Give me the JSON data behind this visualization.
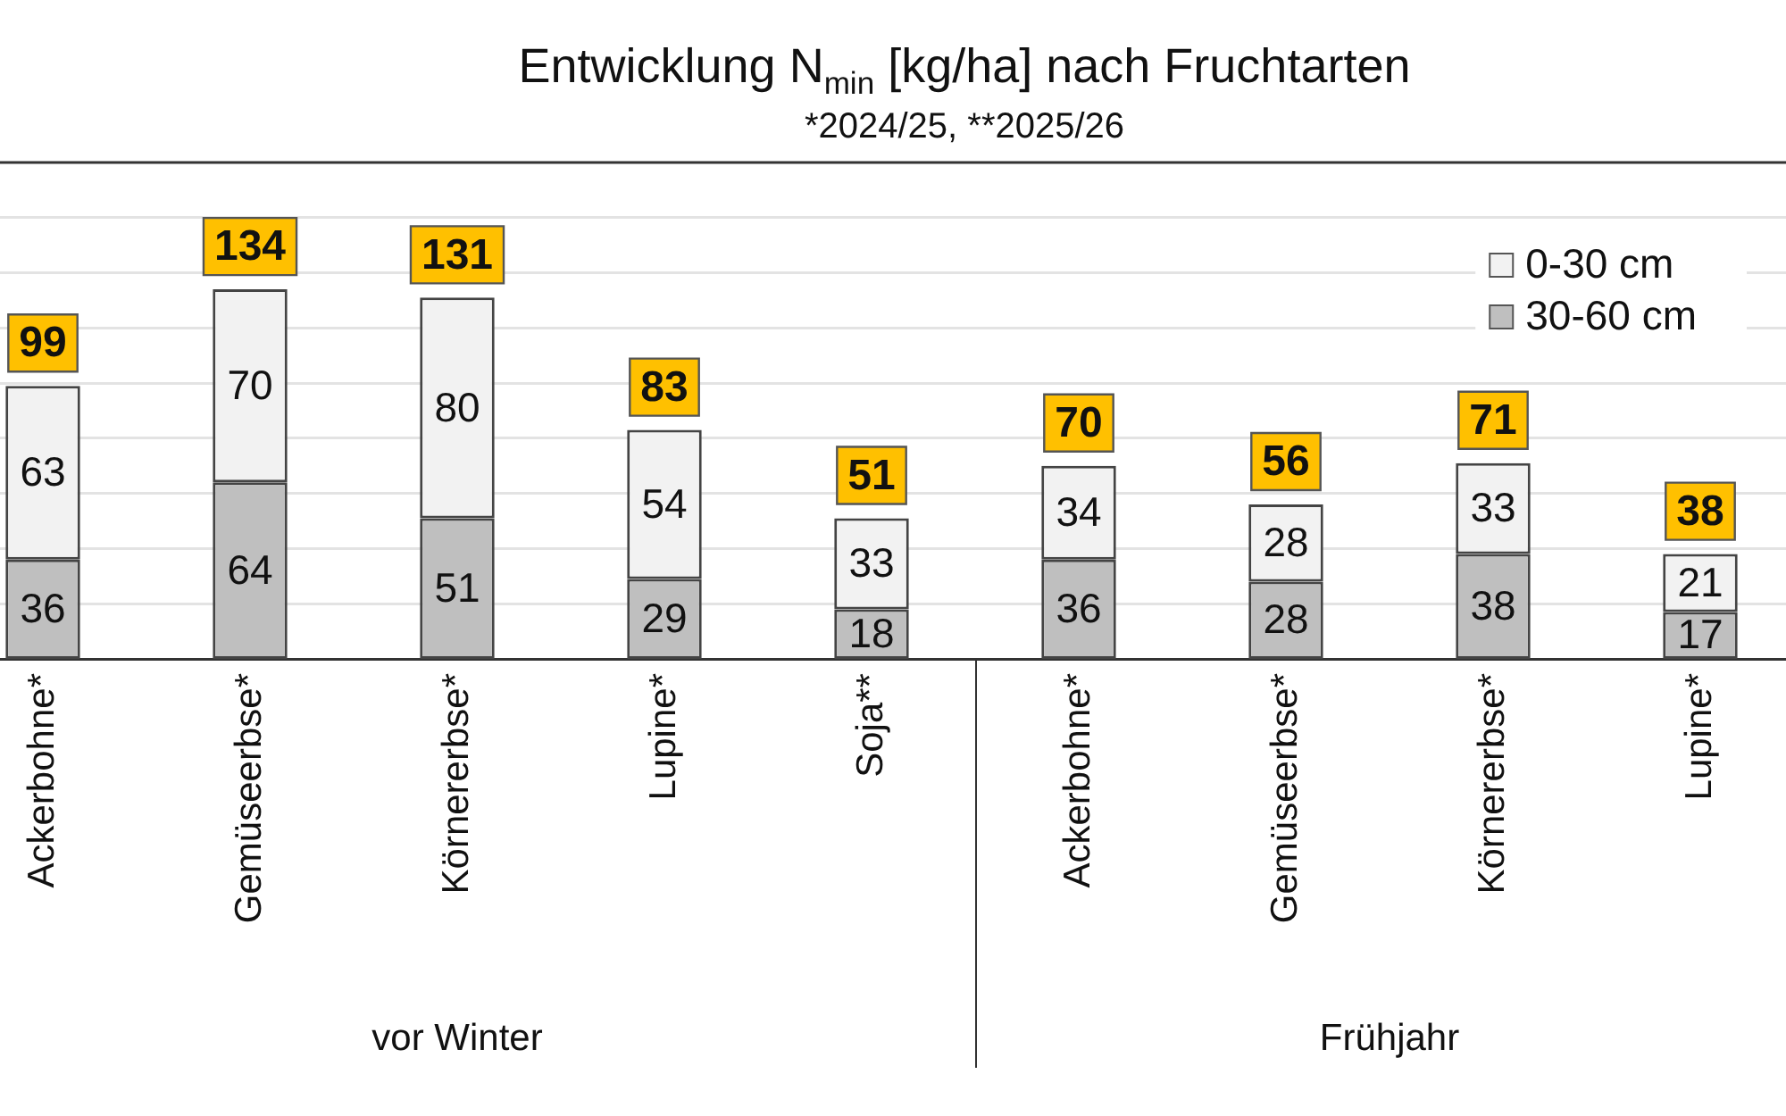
{
  "chart_data": {
    "type": "bar",
    "title": "Entwicklung N$_{min}$ [kg/ha] nach Fruchtarten",
    "subtitle": "*2024/25, **2025/26",
    "categories": [
      "Ackerbohne*",
      "Gemüseerbse*",
      "Körnererbse*",
      "Lupine*",
      "Soja**",
      "Ackerbohne*",
      "Gemüseerbse*",
      "Körnererbse*",
      "Lupine*"
    ],
    "stacked": true,
    "series": [
      {
        "name": "30-60 cm",
        "color": "#bfbfbf",
        "values": [
          36,
          64,
          51,
          29,
          18,
          36,
          28,
          38,
          17
        ]
      },
      {
        "name": "0-30 cm",
        "color": "#f2f2f2",
        "values": [
          63,
          70,
          80,
          54,
          33,
          34,
          28,
          33,
          21
        ]
      }
    ],
    "data_labels": true,
    "totals": [
      "99",
      "134",
      "131",
      "83",
      "51",
      "70",
      "56",
      "71",
      "38"
    ],
    "ylim": [
      0,
      180
    ],
    "yticks": [
      {
        "value": 20,
        "label": null
      },
      {
        "value": 40,
        "label": null
      },
      {
        "value": 60,
        "label": null
      },
      {
        "value": 80,
        "label": null
      },
      {
        "value": 100,
        "label": null
      },
      {
        "value": 120,
        "label": null
      },
      {
        "value": 140,
        "label": null
      },
      {
        "value": 160,
        "label": null
      }
    ],
    "grid": "y",
    "tick_labels": "x",
    "legend": "top right",
    "annotations": [
      "vor Winter",
      "Frühjahr"
    ]
  }
}
